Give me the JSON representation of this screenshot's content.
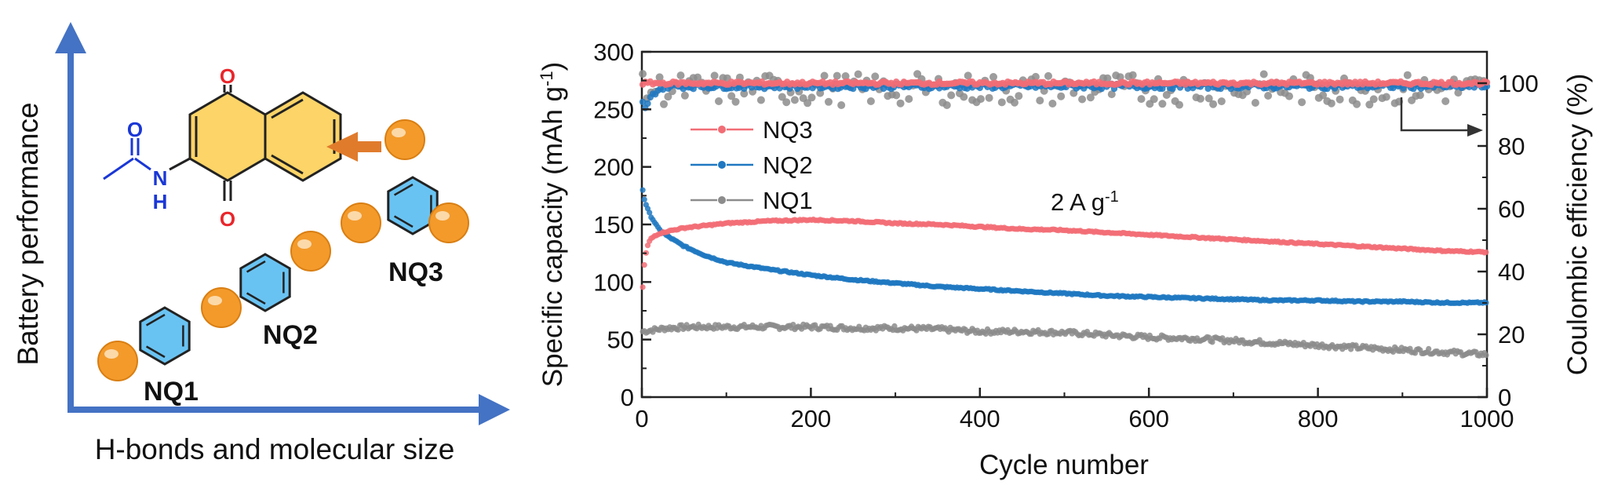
{
  "left_panel": {
    "y_axis_label": "Battery performance",
    "x_axis_label": "H-bonds and molecular size",
    "molecules": [
      {
        "name": "NQ1",
        "balls": 1
      },
      {
        "name": "NQ2",
        "balls": 2
      },
      {
        "name": "NQ3",
        "balls": 3
      }
    ],
    "structure_atoms": {
      "oxygen_top": "O",
      "oxygen_bottom": "O",
      "oxygen_amide": "O",
      "nitrogen": "N",
      "hydrogen": "H"
    },
    "colors": {
      "axis": "#4472c4",
      "ring_fill": "#69c3f2",
      "core_fill": "#fcd467",
      "ball": "#f39a2b",
      "arrow": "#e07b2c",
      "oxygen": "#e8262b",
      "nitrogen": "#1a37d6"
    }
  },
  "chart_data": {
    "type": "scatter",
    "xlabel": "Cycle number",
    "ylabel": "Specific capacity (mAh g",
    "ylabel_sup": "-1",
    "ylabel_end": ")",
    "y2label": "Coulombic efficiency (%)",
    "xlim": [
      0,
      1000
    ],
    "ylim": [
      0,
      300
    ],
    "y2lim": [
      0,
      110
    ],
    "x_ticks": [
      "0",
      "200",
      "400",
      "600",
      "800",
      "1000"
    ],
    "y_ticks": [
      "0",
      "50",
      "100",
      "150",
      "200",
      "250",
      "300"
    ],
    "y2_ticks": [
      "0",
      "20",
      "40",
      "60",
      "80",
      "100"
    ],
    "annotation": "2 A g",
    "annotation_sup": "-1",
    "legend_position": "upper-left",
    "series": [
      {
        "name": "NQ3",
        "color": "#f26d75",
        "capacity": {
          "x": [
            1,
            3,
            6,
            10,
            15,
            20,
            30,
            50,
            75,
            100,
            150,
            200,
            250,
            300,
            350,
            400,
            450,
            500,
            550,
            600,
            650,
            700,
            750,
            800,
            850,
            900,
            950,
            1000
          ],
          "y": [
            95,
            115,
            130,
            137,
            140,
            142,
            144,
            147,
            149,
            151,
            153,
            154,
            153,
            151,
            150,
            148,
            146,
            145,
            143,
            141,
            139,
            137,
            135,
            133,
            131,
            129,
            127,
            126
          ]
        },
        "efficiency": {
          "x": [
            0,
            1000
          ],
          "y": [
            100,
            100
          ]
        }
      },
      {
        "name": "NQ2",
        "color": "#1f78c1",
        "capacity": {
          "x": [
            1,
            3,
            6,
            10,
            15,
            20,
            30,
            50,
            75,
            100,
            150,
            200,
            250,
            300,
            350,
            400,
            450,
            500,
            550,
            600,
            650,
            700,
            750,
            800,
            850,
            900,
            950,
            1000
          ],
          "y": [
            180,
            172,
            165,
            158,
            152,
            146,
            140,
            131,
            123,
            117,
            111,
            106,
            102,
            99,
            96,
            94,
            92,
            90,
            88,
            87,
            86,
            85,
            84,
            84,
            83,
            83,
            82,
            82
          ]
        },
        "efficiency": {
          "x": [
            0,
            5,
            10,
            15,
            20,
            30,
            50,
            100,
            1000
          ],
          "y": [
            94,
            92,
            95,
            97,
            98,
            99,
            99,
            99,
            99
          ]
        }
      },
      {
        "name": "NQ1",
        "color": "#8c8c8c",
        "capacity": {
          "x": [
            1,
            10,
            30,
            60,
            100,
            150,
            200,
            250,
            300,
            350,
            400,
            450,
            500,
            550,
            600,
            650,
            700,
            750,
            800,
            850,
            900,
            950,
            1000
          ],
          "y": [
            57,
            58,
            60,
            61,
            61,
            61,
            61,
            60,
            60,
            59,
            57,
            57,
            56,
            54,
            52,
            51,
            49,
            47,
            45,
            43,
            41,
            39,
            37
          ]
        },
        "efficiency": {
          "x": [
            0,
            1000
          ],
          "y": [
            98,
            98
          ],
          "scatter": 5
        }
      }
    ]
  }
}
